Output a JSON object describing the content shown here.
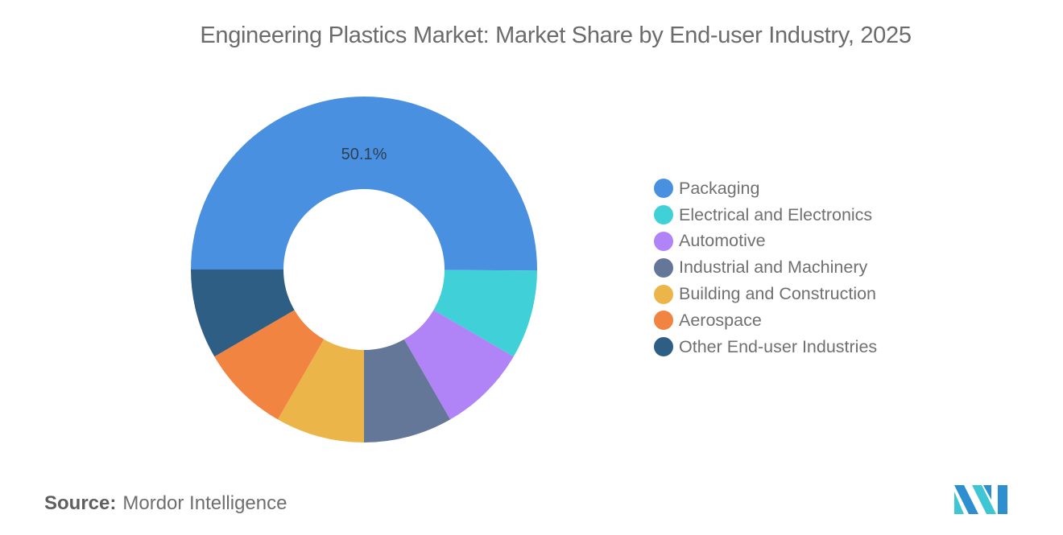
{
  "title": "Engineering Plastics Market: Market Share by End-user Industry, 2025",
  "source": {
    "label": "Source:",
    "value": "Mordor Intelligence"
  },
  "logo": {
    "icon": "mordor-intelligence-logo-icon",
    "colors": [
      "#2d8fcf",
      "#3ec6d4"
    ]
  },
  "chart_data": {
    "type": "pie",
    "variant": "donut",
    "title": "Engineering Plastics Market: Market Share by End-user Industry, 2025",
    "categories": [
      "Packaging",
      "Electrical and Electronics",
      "Automotive",
      "Industrial and Machinery",
      "Building and Construction",
      "Aerospace",
      "Other End-user Industries"
    ],
    "values": [
      50.1,
      8.3,
      8.3,
      8.3,
      8.3,
      8.3,
      8.4
    ],
    "colors": [
      "#4a90e0",
      "#3fd0d8",
      "#b084f7",
      "#657798",
      "#ebb54a",
      "#f18441",
      "#2e5e84"
    ],
    "data_labels": [
      {
        "category": "Packaging",
        "text": "50.1%"
      }
    ],
    "legend_position": "right",
    "start_angle_deg": 180
  }
}
